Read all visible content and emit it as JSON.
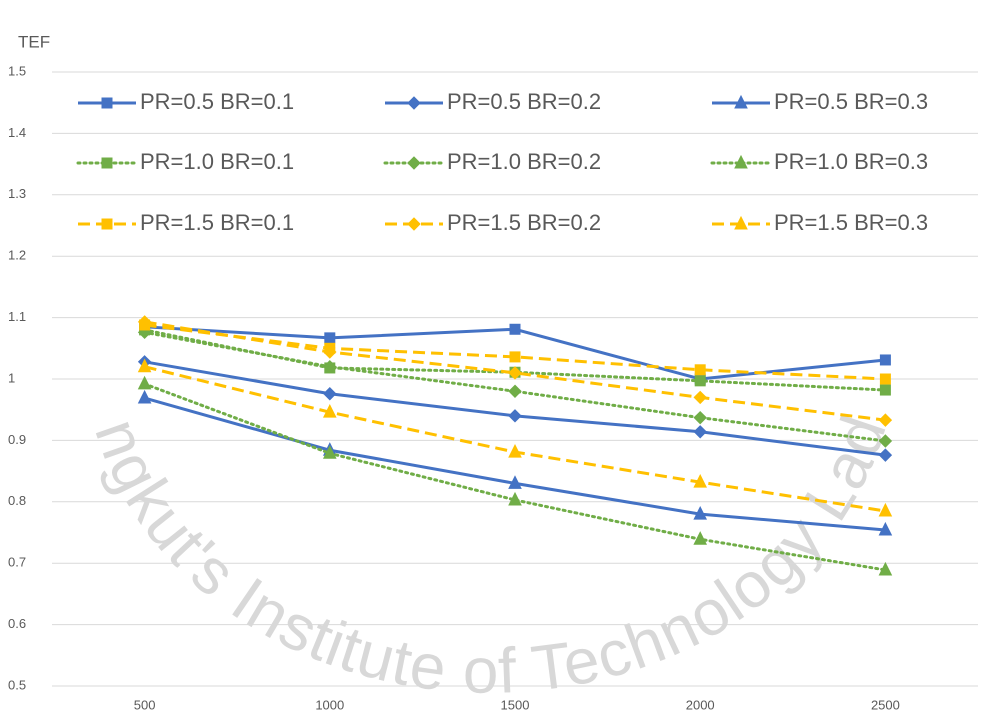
{
  "chart_data": {
    "type": "line",
    "y_label": "TEF",
    "watermark": "King Mongkut's Institute of Technology Ladkrabang",
    "categories": [
      "500",
      "1000",
      "1500",
      "2000",
      "2500"
    ],
    "ylim": [
      0.5,
      1.5
    ],
    "yticks": [
      0.5,
      0.6,
      0.7,
      0.8,
      0.9,
      1,
      1.1,
      1.2,
      1.3,
      1.4,
      1.5
    ],
    "grid": true,
    "legend": "top",
    "series": [
      {
        "name": "PR=0.5 BR=0.1",
        "color": "#4472c4",
        "dash": "solid",
        "marker": "square",
        "values": [
          1.085,
          1.067,
          1.081,
          1.0,
          1.031
        ]
      },
      {
        "name": "PR=0.5 BR=0.2",
        "color": "#4472c4",
        "dash": "solid",
        "marker": "diamond",
        "values": [
          1.028,
          0.976,
          0.94,
          0.914,
          0.876
        ]
      },
      {
        "name": "PR=0.5 BR=0.3",
        "color": "#4472c4",
        "dash": "solid",
        "marker": "triangle",
        "values": [
          0.969,
          0.884,
          0.83,
          0.78,
          0.754
        ]
      },
      {
        "name": "PR=1.0 BR=0.1",
        "color": "#70ad47",
        "dash": "dotted",
        "marker": "square",
        "values": [
          1.08,
          1.018,
          1.011,
          0.997,
          0.982
        ]
      },
      {
        "name": "PR=1.0 BR=0.2",
        "color": "#70ad47",
        "dash": "dotted",
        "marker": "diamond",
        "values": [
          1.076,
          1.02,
          0.98,
          0.937,
          0.899
        ]
      },
      {
        "name": "PR=1.0 BR=0.3",
        "color": "#70ad47",
        "dash": "dotted",
        "marker": "triangle",
        "values": [
          0.992,
          0.879,
          0.803,
          0.739,
          0.689
        ]
      },
      {
        "name": "PR=1.5 BR=0.1",
        "color": "#ffc000",
        "dash": "dashed",
        "marker": "square",
        "values": [
          1.088,
          1.05,
          1.036,
          1.015,
          1.0
        ]
      },
      {
        "name": "PR=1.5 BR=0.2",
        "color": "#ffc000",
        "dash": "dashed",
        "marker": "diamond",
        "values": [
          1.093,
          1.044,
          1.01,
          0.97,
          0.933
        ]
      },
      {
        "name": "PR=1.5 BR=0.3",
        "color": "#ffc000",
        "dash": "dashed",
        "marker": "triangle",
        "values": [
          1.02,
          0.946,
          0.881,
          0.832,
          0.785
        ]
      }
    ]
  }
}
